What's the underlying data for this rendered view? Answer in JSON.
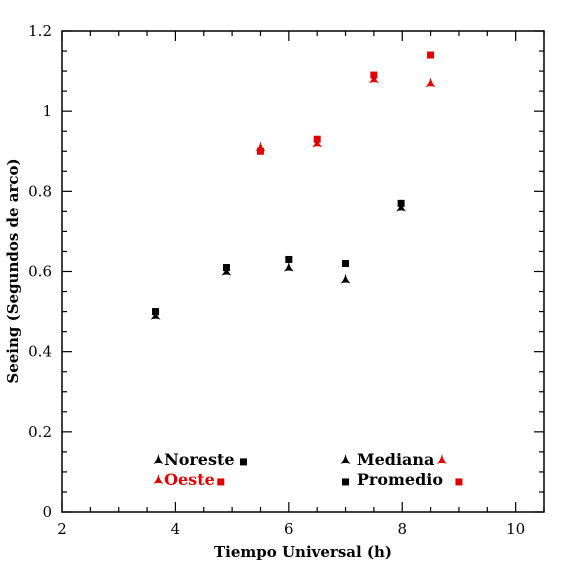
{
  "chart_data": {
    "type": "scatter",
    "xlabel": "Tiempo Universal (h)",
    "ylabel": "Seeing (Segundos de arco)",
    "xlim": [
      2,
      10.5
    ],
    "ylim": [
      0,
      1.2
    ],
    "xticks": [
      2,
      4,
      6,
      8,
      10
    ],
    "yticks": [
      0,
      0.2,
      0.4,
      0.6,
      0.8,
      1,
      1.2
    ],
    "xtick_labels": [
      "2",
      "4",
      "6",
      "8",
      "10"
    ],
    "ytick_labels": [
      "0",
      "0.2",
      "0.4",
      "0.6",
      "0.8",
      "1",
      "1.2"
    ],
    "grid": false,
    "colors": {
      "noreste": "#000000",
      "oeste": "#e00000"
    },
    "series": [
      {
        "name": "Noreste",
        "group": "noreste",
        "stat": "Mediana",
        "marker": "triangle",
        "x": [
          3.65,
          4.9,
          6.0,
          7.0,
          7.98
        ],
        "y": [
          0.49,
          0.6,
          0.61,
          0.58,
          0.76
        ]
      },
      {
        "name": "Noreste",
        "group": "noreste",
        "stat": "Promedio",
        "marker": "square",
        "x": [
          3.65,
          4.9,
          6.0,
          7.0,
          7.98
        ],
        "y": [
          0.5,
          0.61,
          0.63,
          0.62,
          0.77
        ]
      },
      {
        "name": "Oeste",
        "group": "oeste",
        "stat": "Mediana",
        "marker": "triangle",
        "x": [
          5.5,
          6.5,
          7.5,
          8.5
        ],
        "y": [
          0.91,
          0.92,
          1.08,
          1.07
        ]
      },
      {
        "name": "Oeste",
        "group": "oeste",
        "stat": "Promedio",
        "marker": "square",
        "x": [
          5.5,
          6.5,
          7.5,
          8.5
        ],
        "y": [
          0.9,
          0.93,
          1.09,
          1.14
        ]
      }
    ],
    "legend": {
      "placement": "bottom",
      "entries": [
        {
          "label": "Noreste",
          "group": "noreste",
          "x_tri": 3.7,
          "x_text": 3.8,
          "x_sq": 5.2,
          "y": 0.13
        },
        {
          "label": "Oeste",
          "group": "oeste",
          "x_tri": 3.7,
          "x_text": 3.8,
          "x_sq": 4.8,
          "y": 0.08
        }
      ],
      "marker_entries": [
        {
          "label": "Mediana",
          "marker": "triangle",
          "x_left": 7.0,
          "x_text": 7.2,
          "x_right": 8.7,
          "y": 0.13,
          "right_group": "oeste"
        },
        {
          "label": "Promedio",
          "marker": "square",
          "x_left": 7.0,
          "x_text": 7.2,
          "x_right": 9.0,
          "y": 0.08,
          "right_group": "oeste"
        }
      ]
    }
  }
}
